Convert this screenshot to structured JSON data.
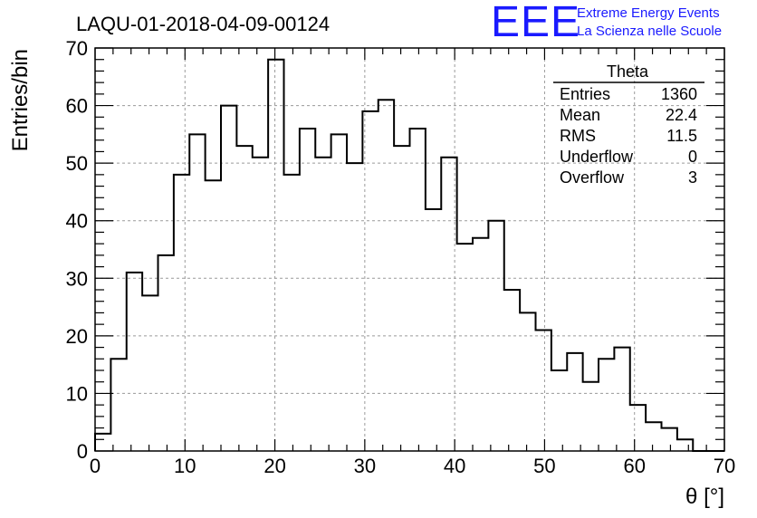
{
  "header": {
    "title": "LAQU-01-2018-04-09-00124"
  },
  "logo": {
    "mark": "EEE",
    "line1": "Extreme Energy Events",
    "line2": "La Scienza nelle Scuole",
    "color": "#1a1aff"
  },
  "stats": {
    "title": "Theta",
    "rows": [
      {
        "label": "Entries",
        "value": "1360"
      },
      {
        "label": "Mean",
        "value": "22.4"
      },
      {
        "label": "RMS",
        "value": "11.5"
      },
      {
        "label": "Underflow",
        "value": "0"
      },
      {
        "label": "Overflow",
        "value": "3"
      }
    ]
  },
  "chart_data": {
    "type": "bar",
    "title": "LAQU-01-2018-04-09-00124",
    "xlabel": "θ [°]",
    "ylabel": "Entries/bin",
    "xlim": [
      0,
      70
    ],
    "ylim": [
      0,
      70
    ],
    "x_ticks": [
      0,
      10,
      20,
      30,
      40,
      50,
      60,
      70
    ],
    "y_ticks": [
      0,
      10,
      20,
      30,
      40,
      50,
      60,
      70
    ],
    "grid": true,
    "bin_width": 1.75,
    "bin_edges_start": 0,
    "values": [
      3,
      16,
      31,
      27,
      34,
      48,
      55,
      47,
      60,
      53,
      51,
      68,
      48,
      56,
      51,
      55,
      50,
      59,
      61,
      53,
      56,
      42,
      51,
      36,
      37,
      40,
      28,
      24,
      21,
      14,
      17,
      12,
      16,
      18,
      8,
      5,
      4,
      2,
      0,
      0
    ]
  }
}
